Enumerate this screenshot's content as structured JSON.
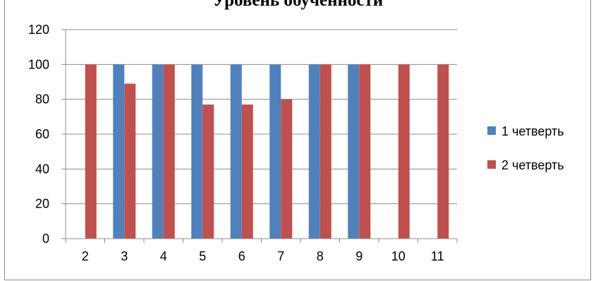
{
  "chart_data": {
    "type": "bar",
    "title": "Уровень обученности",
    "categories": [
      "2",
      "3",
      "4",
      "5",
      "6",
      "7",
      "8",
      "9",
      "10",
      "11"
    ],
    "series": [
      {
        "name": "1 четверть",
        "color": "#4f81bd",
        "values": [
          null,
          100,
          100,
          100,
          100,
          100,
          100,
          100,
          null,
          null
        ]
      },
      {
        "name": "2 четверть",
        "color": "#c0504d",
        "values": [
          100,
          89,
          100,
          77,
          77,
          80,
          100,
          100,
          100,
          100
        ]
      }
    ],
    "ylim": [
      0,
      120
    ],
    "yticks": [
      0,
      20,
      40,
      60,
      80,
      100,
      120
    ],
    "grid": true,
    "legend_position": "right"
  }
}
